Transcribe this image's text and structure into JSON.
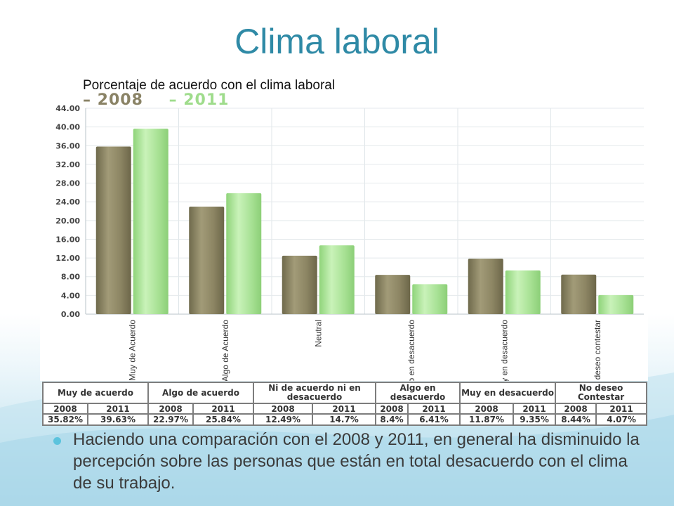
{
  "slide": {
    "title": "Clima laboral",
    "bullet": "Haciendo una comparación con el 2008 y 2011, en general ha disminuido la percepción sobre las personas que están en total desacuerdo con el clima de su trabajo."
  },
  "chart_data": {
    "type": "bar",
    "title": "Porcentaje de acuerdo con el clima laboral",
    "categories": [
      "Muy de Acuerdo",
      "Algo de Acuerdo",
      "Neutral",
      "Algo en desacuerdo",
      "Muy en desacuerdo",
      "No deseo contestar"
    ],
    "series": [
      {
        "name": "2008",
        "values": [
          35.82,
          22.97,
          12.49,
          8.4,
          11.87,
          8.44
        ],
        "color": "#8f8864"
      },
      {
        "name": "2011",
        "values": [
          39.63,
          25.84,
          14.7,
          6.41,
          9.35,
          4.07
        ],
        "color": "#a3df8f"
      }
    ],
    "ylim": [
      0,
      44
    ],
    "yticks": [
      "0.00",
      "4.00",
      "8.00",
      "12.00",
      "16.00",
      "20.00",
      "24.00",
      "28.00",
      "32.00",
      "36.00",
      "40.00",
      "44.00"
    ],
    "legend_position": "top-left",
    "grid": true
  },
  "table": {
    "headers": [
      "Muy de acuerdo",
      "Algo de acuerdo",
      "Ni de acuerdo ni en desacuerdo",
      "Algo en desacuerdo",
      "Muy en desacuerdo",
      "No deseo Contestar"
    ],
    "years": [
      "2008",
      "2011",
      "2008",
      "2011",
      "2008",
      "2011",
      "2008",
      "2011",
      "2008",
      "2011",
      "2008",
      "2011"
    ],
    "values": [
      "35.82%",
      "39.63%",
      "22.97%",
      "25.84%",
      "12.49%",
      "14.7%",
      "8.4%",
      "6.41%",
      "11.87%",
      "9.35%",
      "8.44%",
      "4.07%"
    ]
  }
}
